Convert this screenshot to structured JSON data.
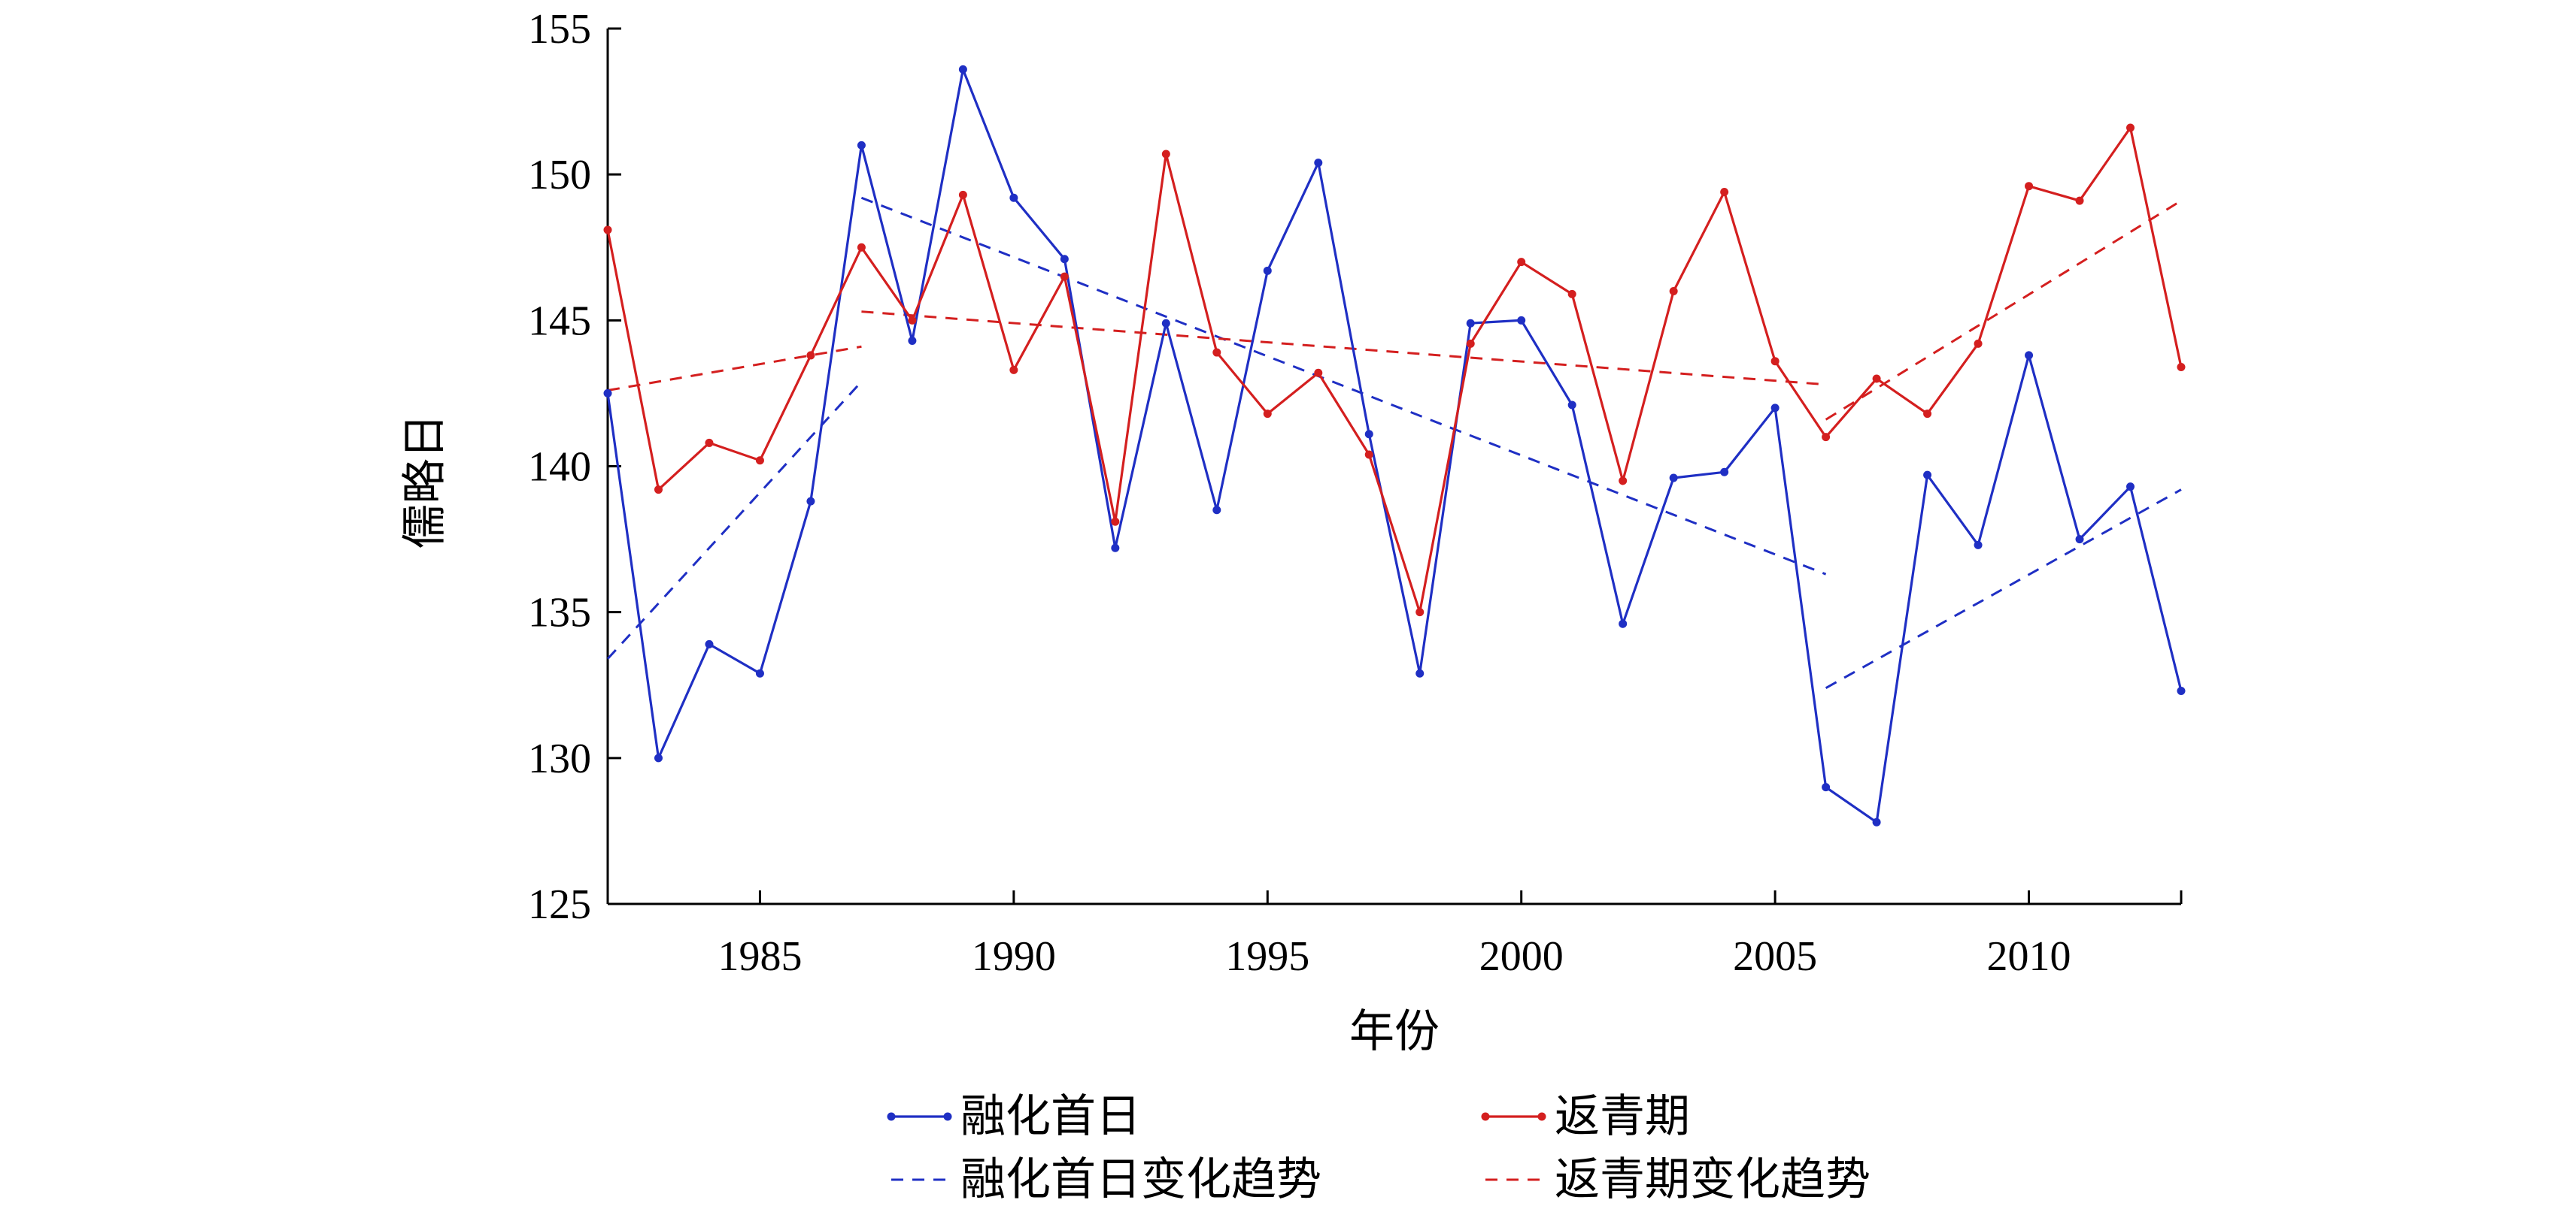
{
  "chart_data": {
    "type": "line",
    "xlabel": "年份",
    "ylabel": "儒略日",
    "xlim": [
      1982,
      2013
    ],
    "ylim": [
      125,
      155
    ],
    "xticks": [
      1985,
      1990,
      1995,
      2000,
      2005,
      2010
    ],
    "yticks": [
      125,
      130,
      135,
      140,
      145,
      150,
      155
    ],
    "grid": false,
    "legend_position": "bottom",
    "series": [
      {
        "name": "融化首日",
        "color": "#1f2fc4",
        "style": "solid-marker",
        "points": [
          [
            1982,
            142.5
          ],
          [
            1983,
            130.0
          ],
          [
            1984,
            133.9
          ],
          [
            1985,
            132.9
          ],
          [
            1986,
            138.8
          ],
          [
            1987,
            151.0
          ],
          [
            1988,
            144.3
          ],
          [
            1989,
            153.6
          ],
          [
            1990,
            149.2
          ],
          [
            1991,
            147.1
          ],
          [
            1992,
            137.2
          ],
          [
            1993,
            144.9
          ],
          [
            1994,
            138.5
          ],
          [
            1995,
            146.7
          ],
          [
            1996,
            150.4
          ],
          [
            1997,
            141.1
          ],
          [
            1998,
            132.9
          ],
          [
            1999,
            144.9
          ],
          [
            2000,
            145.0
          ],
          [
            2001,
            142.1
          ],
          [
            2002,
            134.6
          ],
          [
            2003,
            139.6
          ],
          [
            2004,
            139.8
          ],
          [
            2005,
            142.0
          ],
          [
            2006,
            129.0
          ],
          [
            2007,
            127.8
          ],
          [
            2008,
            139.7
          ],
          [
            2009,
            137.3
          ],
          [
            2010,
            143.8
          ],
          [
            2011,
            137.5
          ],
          [
            2012,
            139.3
          ],
          [
            2013,
            132.3
          ]
        ]
      },
      {
        "name": "返青期",
        "color": "#d41f1f",
        "style": "solid-marker",
        "points": [
          [
            1982,
            148.1
          ],
          [
            1983,
            139.2
          ],
          [
            1984,
            140.8
          ],
          [
            1985,
            140.2
          ],
          [
            1986,
            143.8
          ],
          [
            1987,
            147.5
          ],
          [
            1988,
            145.0
          ],
          [
            1989,
            149.3
          ],
          [
            1990,
            143.3
          ],
          [
            1991,
            146.5
          ],
          [
            1992,
            138.1
          ],
          [
            1993,
            150.7
          ],
          [
            1994,
            143.9
          ],
          [
            1995,
            141.8
          ],
          [
            1996,
            143.2
          ],
          [
            1997,
            140.4
          ],
          [
            1998,
            135.0
          ],
          [
            1999,
            144.2
          ],
          [
            2000,
            147.0
          ],
          [
            2001,
            145.9
          ],
          [
            2002,
            139.5
          ],
          [
            2003,
            146.0
          ],
          [
            2004,
            149.4
          ],
          [
            2005,
            143.6
          ],
          [
            2006,
            141.0
          ],
          [
            2007,
            143.0
          ],
          [
            2008,
            141.8
          ],
          [
            2009,
            144.2
          ],
          [
            2010,
            149.6
          ],
          [
            2011,
            149.1
          ],
          [
            2012,
            151.6
          ],
          [
            2013,
            143.4
          ]
        ]
      },
      {
        "name": "融化首日变化趋势",
        "color": "#1f2fc4",
        "style": "dashed",
        "segments": [
          [
            [
              1982,
              133.4
            ],
            [
              1987,
              142.9
            ]
          ],
          [
            [
              1987,
              149.2
            ],
            [
              2006,
              136.3
            ]
          ],
          [
            [
              2006,
              132.4
            ],
            [
              2013,
              139.2
            ]
          ]
        ]
      },
      {
        "name": "返青期变化趋势",
        "color": "#d41f1f",
        "style": "dashed",
        "segments": [
          [
            [
              1982,
              142.6
            ],
            [
              1987,
              144.1
            ]
          ],
          [
            [
              1987,
              145.3
            ],
            [
              2006,
              142.8
            ]
          ],
          [
            [
              2006,
              141.6
            ],
            [
              2013,
              149.1
            ]
          ]
        ]
      }
    ]
  }
}
